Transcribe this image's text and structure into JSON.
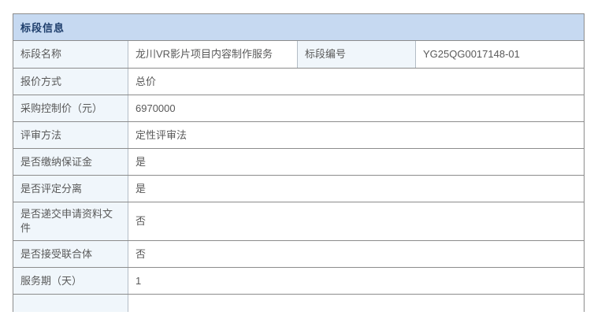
{
  "panel": {
    "title": "标段信息"
  },
  "table": {
    "row1": {
      "label1": "标段名称",
      "value1": "龙川VR影片项目内容制作服务",
      "label2": "标段编号",
      "value2": "YG25QG0017148-01"
    },
    "rows": [
      {
        "label": "报价方式",
        "value": "总价"
      },
      {
        "label": "采购控制价（元）",
        "value": "6970000"
      },
      {
        "label": "评审方法",
        "value": "定性评审法"
      },
      {
        "label": "是否缴纳保证金",
        "value": "是"
      },
      {
        "label": "是否评定分离",
        "value": "是"
      },
      {
        "label": "是否递交申请资料文件",
        "value": "否"
      },
      {
        "label": "是否接受联合体",
        "value": "否"
      },
      {
        "label": "服务期（天）",
        "value": "1"
      }
    ]
  },
  "colors": {
    "header_bg": "#c6d9f1",
    "header_text": "#1d3d6b",
    "label_bg": "#f0f6fb",
    "border": "#8c8c8c",
    "divider": "#b3bcc6",
    "text": "#595959",
    "page_bg": "#ffffff"
  }
}
